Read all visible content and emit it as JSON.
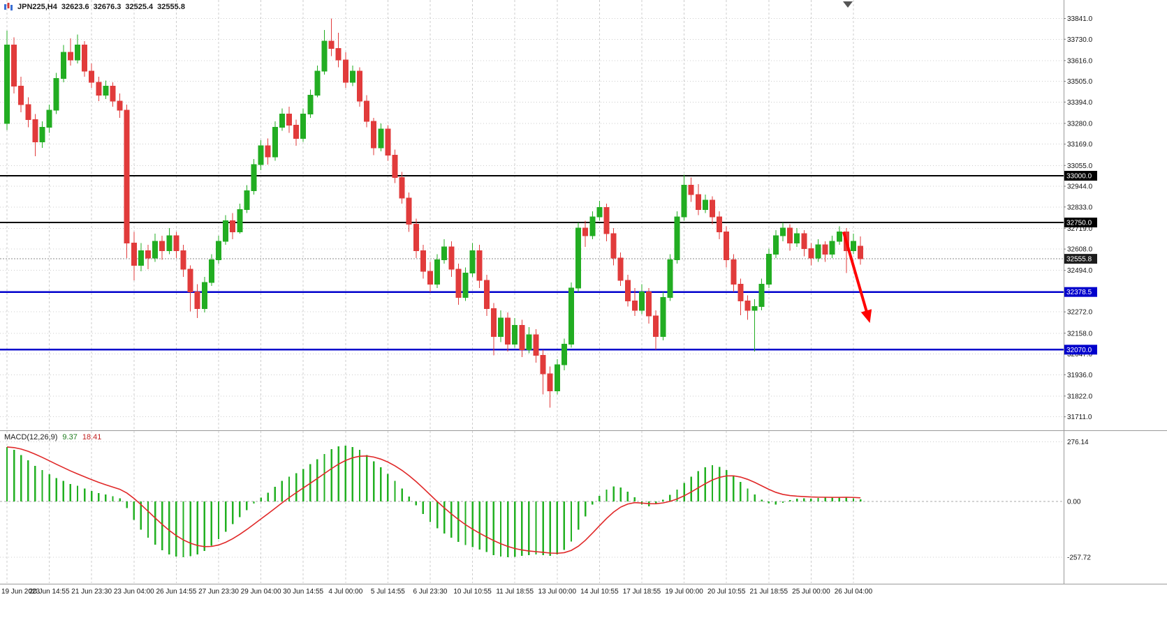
{
  "header": {
    "symbol_period": "JPN225,H4",
    "open": "32623.6",
    "high": "32676.3",
    "low": "32525.4",
    "close": "32555.8"
  },
  "macd": {
    "label": "MACD(12,26,9)",
    "main": "9.37",
    "signal": "18.41"
  },
  "colors": {
    "bull": "#22ad22",
    "bear": "#e13b3b",
    "histogram": "#22b022",
    "signal_line": "#e02828",
    "grid": "#cccccc",
    "axis_text": "#141414",
    "separator": "#9a9a9a",
    "annotation_arrow": "#ff0000"
  },
  "chart_data": {
    "type": "candlestick",
    "symbol": "JPN225",
    "timeframe": "H4",
    "indicator": "MACD(12,26,9)",
    "ohlc_current": [
      32623.6,
      32676.3,
      32525.4,
      32555.8
    ],
    "macd_current": [
      9.37,
      18.41
    ],
    "ylim_price": [
      31650,
      33910
    ],
    "ylim_macd": [
      -368,
      313
    ],
    "price_ticks": [
      33841.0,
      33730.0,
      33616.0,
      33505.0,
      33394.0,
      33280.0,
      33169.0,
      33055.0,
      32944.0,
      32833.0,
      32719.0,
      32608.0,
      32494.0,
      32272.0,
      32158.0,
      32047.0,
      31936.0,
      31822.0,
      31711.0
    ],
    "macd_ticks": [
      276.14,
      0,
      -257.72
    ],
    "time_labels": [
      "19 Jun 2023",
      "20 Jun 14:55",
      "21 Jun 23:30",
      "23 Jun 04:00",
      "26 Jun 14:55",
      "27 Jun 23:30",
      "29 Jun 04:00",
      "30 Jun 14:55",
      "4 Jul 00:00",
      "5 Jul 14:55",
      "6 Jul 23:30",
      "10 Jul 10:55",
      "11 Jul 18:55",
      "13 Jul 00:00",
      "14 Jul 10:55",
      "17 Jul 18:55",
      "19 Jul 00:00",
      "20 Jul 10:55",
      "21 Jul 18:55",
      "25 Jul 00:00",
      "26 Jul 04:00"
    ],
    "bars_per_label": 6,
    "hlines": [
      {
        "price": 33000.0,
        "color": "#000000",
        "width": 1.8,
        "badge_bg": "#000000"
      },
      {
        "price": 32750.0,
        "color": "#000000",
        "width": 1.8,
        "badge_bg": "#000000"
      },
      {
        "price": 32378.5,
        "color": "#0000cc",
        "width": 2.4,
        "badge_bg": "#0000cc"
      },
      {
        "price": 32070.0,
        "color": "#0000cc",
        "width": 2.4,
        "badge_bg": "#0000cc"
      }
    ],
    "current_price": {
      "price": 32555.8,
      "badge_bg": "#1c1c1c",
      "line_color": "#888888"
    },
    "annotation_arrow": {
      "from_bar": 118.6,
      "from_price": 32700,
      "to_bar": 122.2,
      "to_price": 32230
    },
    "candles": [
      [
        33280,
        33775,
        33245,
        33700
      ],
      [
        33700,
        33740,
        33440,
        33480
      ],
      [
        33480,
        33530,
        33340,
        33380
      ],
      [
        33380,
        33420,
        33260,
        33300
      ],
      [
        33300,
        33330,
        33105,
        33180
      ],
      [
        33180,
        33290,
        33150,
        33260
      ],
      [
        33260,
        33380,
        33230,
        33350
      ],
      [
        33350,
        33550,
        33330,
        33520
      ],
      [
        33520,
        33700,
        33500,
        33660
      ],
      [
        33660,
        33735,
        33590,
        33620
      ],
      [
        33620,
        33755,
        33600,
        33700
      ],
      [
        33700,
        33720,
        33530,
        33560
      ],
      [
        33560,
        33600,
        33470,
        33500
      ],
      [
        33500,
        33530,
        33400,
        33430
      ],
      [
        33430,
        33510,
        33410,
        33480
      ],
      [
        33480,
        33500,
        33370,
        33400
      ],
      [
        33400,
        33440,
        33310,
        33350
      ],
      [
        33350,
        33380,
        32560,
        32640
      ],
      [
        32640,
        32700,
        32440,
        32520
      ],
      [
        32520,
        32640,
        32490,
        32600
      ],
      [
        32600,
        32630,
        32500,
        32560
      ],
      [
        32560,
        32690,
        32540,
        32650
      ],
      [
        32650,
        32680,
        32550,
        32600
      ],
      [
        32600,
        32720,
        32580,
        32680
      ],
      [
        32680,
        32700,
        32560,
        32600
      ],
      [
        32600,
        32630,
        32460,
        32500
      ],
      [
        32500,
        32520,
        32275,
        32380
      ],
      [
        32380,
        32420,
        32240,
        32290
      ],
      [
        32290,
        32460,
        32270,
        32430
      ],
      [
        32430,
        32580,
        32410,
        32550
      ],
      [
        32550,
        32680,
        32530,
        32650
      ],
      [
        32650,
        32790,
        32630,
        32760
      ],
      [
        32760,
        32800,
        32660,
        32700
      ],
      [
        32700,
        32850,
        32690,
        32820
      ],
      [
        32820,
        32950,
        32800,
        32920
      ],
      [
        32920,
        33090,
        32900,
        33060
      ],
      [
        33060,
        33190,
        33030,
        33160
      ],
      [
        33160,
        33200,
        33060,
        33100
      ],
      [
        33100,
        33290,
        33080,
        33260
      ],
      [
        33260,
        33360,
        33240,
        33330
      ],
      [
        33330,
        33370,
        33230,
        33270
      ],
      [
        33270,
        33300,
        33160,
        33200
      ],
      [
        33200,
        33360,
        33180,
        33330
      ],
      [
        33330,
        33460,
        33310,
        33430
      ],
      [
        33430,
        33590,
        33420,
        33560
      ],
      [
        33560,
        33780,
        33540,
        33720
      ],
      [
        33720,
        33841,
        33640,
        33680
      ],
      [
        33680,
        33765,
        33580,
        33620
      ],
      [
        33620,
        33660,
        33470,
        33500
      ],
      [
        33500,
        33590,
        33480,
        33560
      ],
      [
        33560,
        33580,
        33370,
        33400
      ],
      [
        33400,
        33430,
        33260,
        33290
      ],
      [
        33290,
        33310,
        33110,
        33150
      ],
      [
        33150,
        33280,
        33130,
        33250
      ],
      [
        33250,
        33270,
        33080,
        33110
      ],
      [
        33110,
        33140,
        32960,
        32990
      ],
      [
        32990,
        33020,
        32850,
        32880
      ],
      [
        32880,
        32910,
        32700,
        32740
      ],
      [
        32740,
        32770,
        32560,
        32600
      ],
      [
        32600,
        32630,
        32450,
        32490
      ],
      [
        32490,
        32540,
        32380,
        32420
      ],
      [
        32420,
        32580,
        32400,
        32550
      ],
      [
        32550,
        32660,
        32530,
        32620
      ],
      [
        32620,
        32650,
        32460,
        32500
      ],
      [
        32500,
        32530,
        32310,
        32350
      ],
      [
        32350,
        32510,
        32330,
        32480
      ],
      [
        32480,
        32640,
        32460,
        32600
      ],
      [
        32600,
        32630,
        32400,
        32440
      ],
      [
        32440,
        32470,
        32250,
        32290
      ],
      [
        32290,
        32320,
        32040,
        32140
      ],
      [
        32140,
        32280,
        32110,
        32240
      ],
      [
        32240,
        32270,
        32060,
        32100
      ],
      [
        32100,
        32240,
        32080,
        32200
      ],
      [
        32200,
        32230,
        32030,
        32070
      ],
      [
        32070,
        32190,
        32050,
        32150
      ],
      [
        32150,
        32180,
        32000,
        32040
      ],
      [
        32040,
        32070,
        31830,
        31940
      ],
      [
        31940,
        31980,
        31760,
        31850
      ],
      [
        31850,
        32020,
        31830,
        31990
      ],
      [
        31990,
        32130,
        31960,
        32100
      ],
      [
        32100,
        32430,
        32080,
        32400
      ],
      [
        32400,
        32750,
        32380,
        32720
      ],
      [
        32720,
        32760,
        32620,
        32680
      ],
      [
        32680,
        32810,
        32660,
        32780
      ],
      [
        32780,
        32865,
        32760,
        32830
      ],
      [
        32830,
        32850,
        32650,
        32690
      ],
      [
        32690,
        32720,
        32520,
        32560
      ],
      [
        32560,
        32590,
        32410,
        32440
      ],
      [
        32440,
        32470,
        32300,
        32330
      ],
      [
        32330,
        32400,
        32250,
        32280
      ],
      [
        32280,
        32420,
        32260,
        32380
      ],
      [
        32380,
        32400,
        32210,
        32250
      ],
      [
        32250,
        32280,
        32070,
        32140
      ],
      [
        32140,
        32380,
        32120,
        32350
      ],
      [
        32350,
        32580,
        32330,
        32550
      ],
      [
        32550,
        32810,
        32530,
        32780
      ],
      [
        32780,
        33005,
        32760,
        32950
      ],
      [
        32950,
        32990,
        32860,
        32900
      ],
      [
        32900,
        32955,
        32790,
        32820
      ],
      [
        32820,
        32900,
        32800,
        32870
      ],
      [
        32870,
        32890,
        32740,
        32780
      ],
      [
        32780,
        32810,
        32660,
        32700
      ],
      [
        32700,
        32730,
        32510,
        32550
      ],
      [
        32550,
        32580,
        32380,
        32420
      ],
      [
        32420,
        32450,
        32255,
        32330
      ],
      [
        32330,
        32360,
        32230,
        32280
      ],
      [
        32280,
        32340,
        32060,
        32300
      ],
      [
        32300,
        32450,
        32280,
        32420
      ],
      [
        32420,
        32610,
        32400,
        32580
      ],
      [
        32580,
        32710,
        32560,
        32680
      ],
      [
        32680,
        32750,
        32650,
        32720
      ],
      [
        32720,
        32740,
        32600,
        32640
      ],
      [
        32640,
        32720,
        32620,
        32690
      ],
      [
        32690,
        32710,
        32570,
        32610
      ],
      [
        32610,
        32640,
        32520,
        32560
      ],
      [
        32560,
        32660,
        32540,
        32630
      ],
      [
        32630,
        32650,
        32540,
        32580
      ],
      [
        32580,
        32680,
        32560,
        32650
      ],
      [
        32650,
        32730,
        32630,
        32700
      ],
      [
        32700,
        32720,
        32480,
        32600
      ],
      [
        32600,
        32690,
        32580,
        32650
      ],
      [
        32623.6,
        32676.3,
        32525.4,
        32555.8
      ]
    ],
    "macd_histogram": [
      252,
      238,
      215,
      190,
      165,
      145,
      125,
      108,
      95,
      80,
      72,
      60,
      48,
      38,
      32,
      24,
      15,
      -30,
      -85,
      -130,
      -168,
      -200,
      -226,
      -245,
      -255,
      -258,
      -254,
      -246,
      -230,
      -205,
      -175,
      -140,
      -105,
      -72,
      -40,
      -10,
      18,
      40,
      68,
      95,
      115,
      130,
      150,
      172,
      195,
      220,
      242,
      255,
      258,
      252,
      238,
      215,
      185,
      158,
      128,
      95,
      60,
      22,
      -18,
      -58,
      -95,
      -125,
      -148,
      -168,
      -188,
      -202,
      -212,
      -222,
      -234,
      -248,
      -255,
      -258,
      -256,
      -252,
      -248,
      -245,
      -248,
      -252,
      -245,
      -225,
      -185,
      -130,
      -70,
      -15,
      25,
      55,
      70,
      65,
      45,
      20,
      -15,
      -22,
      -12,
      8,
      30,
      55,
      85,
      115,
      140,
      158,
      168,
      160,
      145,
      120,
      90,
      60,
      32,
      8,
      -8,
      -14,
      -6,
      6,
      13,
      15,
      13,
      16,
      18,
      17,
      19,
      21,
      15,
      9.37
    ]
  }
}
